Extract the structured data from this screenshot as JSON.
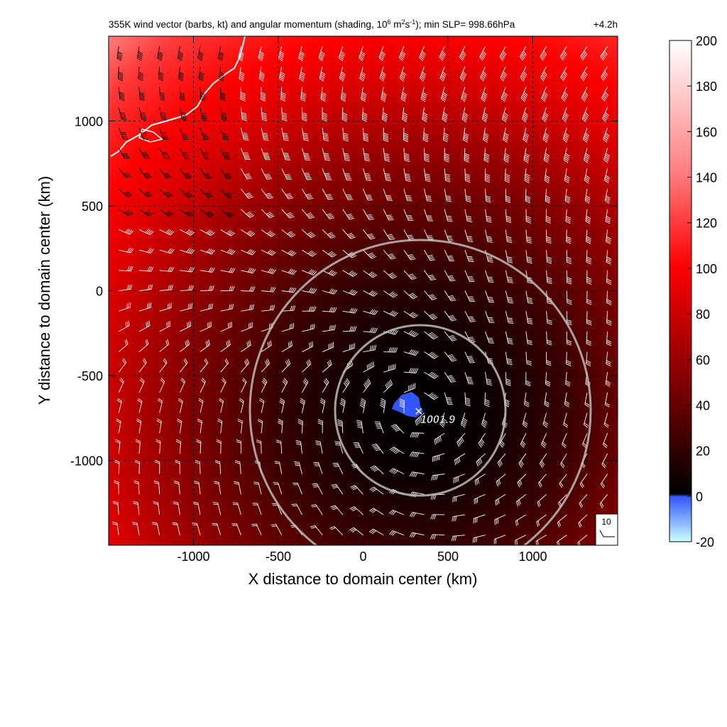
{
  "figure": {
    "title_main": "355K wind vector (barbs, kt) and angular momentum (shading, 10",
    "title_exp1": "6",
    "title_mid1": " m",
    "title_exp2": "2",
    "title_mid2": "s",
    "title_exp3": "-1",
    "title_tail": "); min SLP= 998.66hPa",
    "time_label": "+4.2h"
  },
  "chart_data": {
    "type": "heatmap",
    "title": "355K wind vector (barbs, kt) and angular momentum (shading, 10^6 m^2 s^-1); min SLP= 998.66hPa",
    "xlabel": "X distance to domain center (km)",
    "ylabel": "Y distance to domain center (km)",
    "xlim": [
      -1500,
      1500
    ],
    "ylim": [
      -1500,
      1500
    ],
    "xticks": [
      -1000,
      -500,
      0,
      500,
      1000
    ],
    "yticks": [
      1000,
      500,
      0,
      -500,
      -1000
    ],
    "grid": true,
    "colorbar": {
      "ticks": [
        200,
        180,
        160,
        140,
        120,
        100,
        80,
        60,
        40,
        20,
        0,
        -20
      ],
      "range": [
        -20,
        200
      ]
    },
    "center_marker": {
      "symbol": "×",
      "label": "1001.9",
      "x": 330,
      "y": -700
    },
    "range_rings_km": [
      500,
      1000
    ],
    "barb_reference": {
      "label": "10"
    },
    "colors": {
      "high": "#ffffff",
      "mid": "#ff0000",
      "low": "#000000",
      "negative": "#3355ff"
    }
  }
}
